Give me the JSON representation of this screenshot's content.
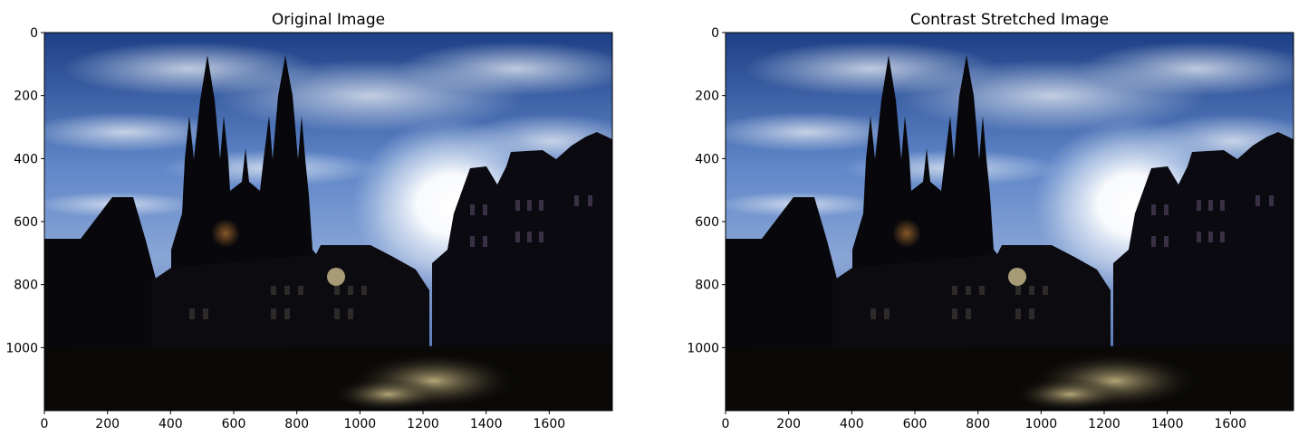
{
  "figure": {
    "left_title": "Original Image",
    "right_title": "Contrast Stretched Image"
  },
  "chart_data": [
    {
      "type": "image",
      "title": "Original Image",
      "xlabel": "",
      "ylabel": "",
      "xlim": [
        0,
        1800
      ],
      "ylim": [
        1200,
        0
      ],
      "xticks": [
        0,
        200,
        400,
        600,
        800,
        1000,
        1200,
        1400,
        1600
      ],
      "yticks": [
        0,
        200,
        400,
        600,
        800,
        1000
      ],
      "grid": false
    },
    {
      "type": "image",
      "title": "Contrast Stretched Image",
      "xlabel": "",
      "ylabel": "",
      "xlim": [
        0,
        1800
      ],
      "ylim": [
        1200,
        0
      ],
      "xticks": [
        0,
        200,
        400,
        600,
        800,
        1000,
        1200,
        1400,
        1600
      ],
      "yticks": [
        0,
        200,
        400,
        600,
        800,
        1000
      ],
      "grid": false
    }
  ],
  "scene": {
    "sky_top_color": "#1d3f86",
    "sky_mid_color": "#5f86c8",
    "sun_color": "#ffffff",
    "silhouette_color": "#07070c",
    "ground_color": "#0a0908",
    "light_color": "#cfc08a"
  }
}
